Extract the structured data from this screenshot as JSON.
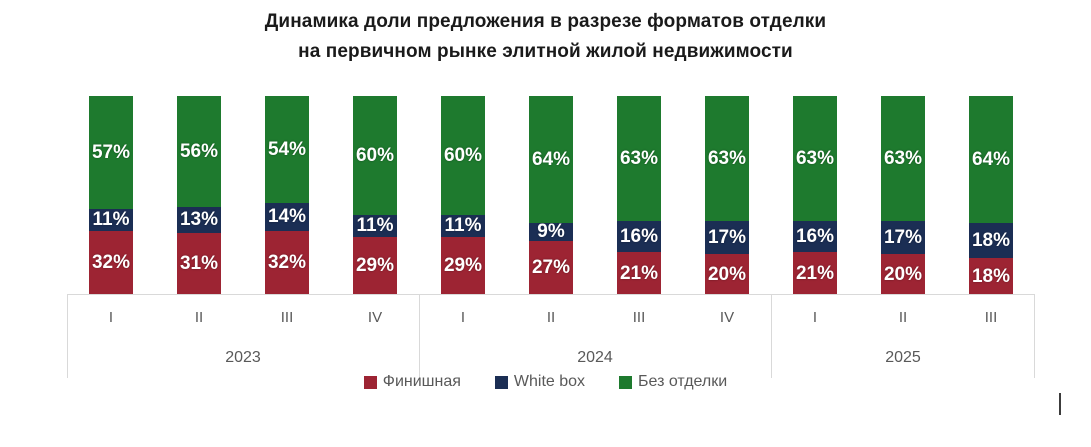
{
  "title": {
    "line1": "Динамика доли предложения в разрезе форматов отделки",
    "line2": "на первичном рынке элитной жилой недвижимости"
  },
  "chart_data": {
    "type": "bar",
    "variant": "stacked-100-percent-column",
    "title": "Динамика доли предложения в разрезе форматов отделки на первичном рынке элитной жилой недвижимости",
    "categories": [
      "I",
      "II",
      "III",
      "IV",
      "I",
      "II",
      "III",
      "IV",
      "I",
      "II",
      "III"
    ],
    "year_groups": [
      {
        "label": "2023",
        "span": 4
      },
      {
        "label": "2024",
        "span": 4
      },
      {
        "label": "2025",
        "span": 3
      }
    ],
    "series": [
      {
        "name": "Финишная",
        "color": "#9D2433",
        "values": [
          32,
          31,
          32,
          29,
          29,
          27,
          21,
          20,
          21,
          20,
          18
        ]
      },
      {
        "name": "White box",
        "color": "#1B2E54",
        "values": [
          11,
          13,
          14,
          11,
          11,
          9,
          16,
          17,
          16,
          17,
          18
        ]
      },
      {
        "name": "Без отделки",
        "color": "#1E7A2E",
        "values": [
          57,
          56,
          54,
          60,
          60,
          64,
          63,
          63,
          63,
          63,
          64
        ]
      }
    ],
    "value_suffix": "%",
    "ylim": [
      0,
      100
    ],
    "grid": false,
    "legend_position": "bottom",
    "colors": {
      "axis_text": "#595959",
      "axis_line": "#D9D9D9",
      "title_text": "#1A1A1A",
      "label_text": "#FFFFFF"
    }
  }
}
